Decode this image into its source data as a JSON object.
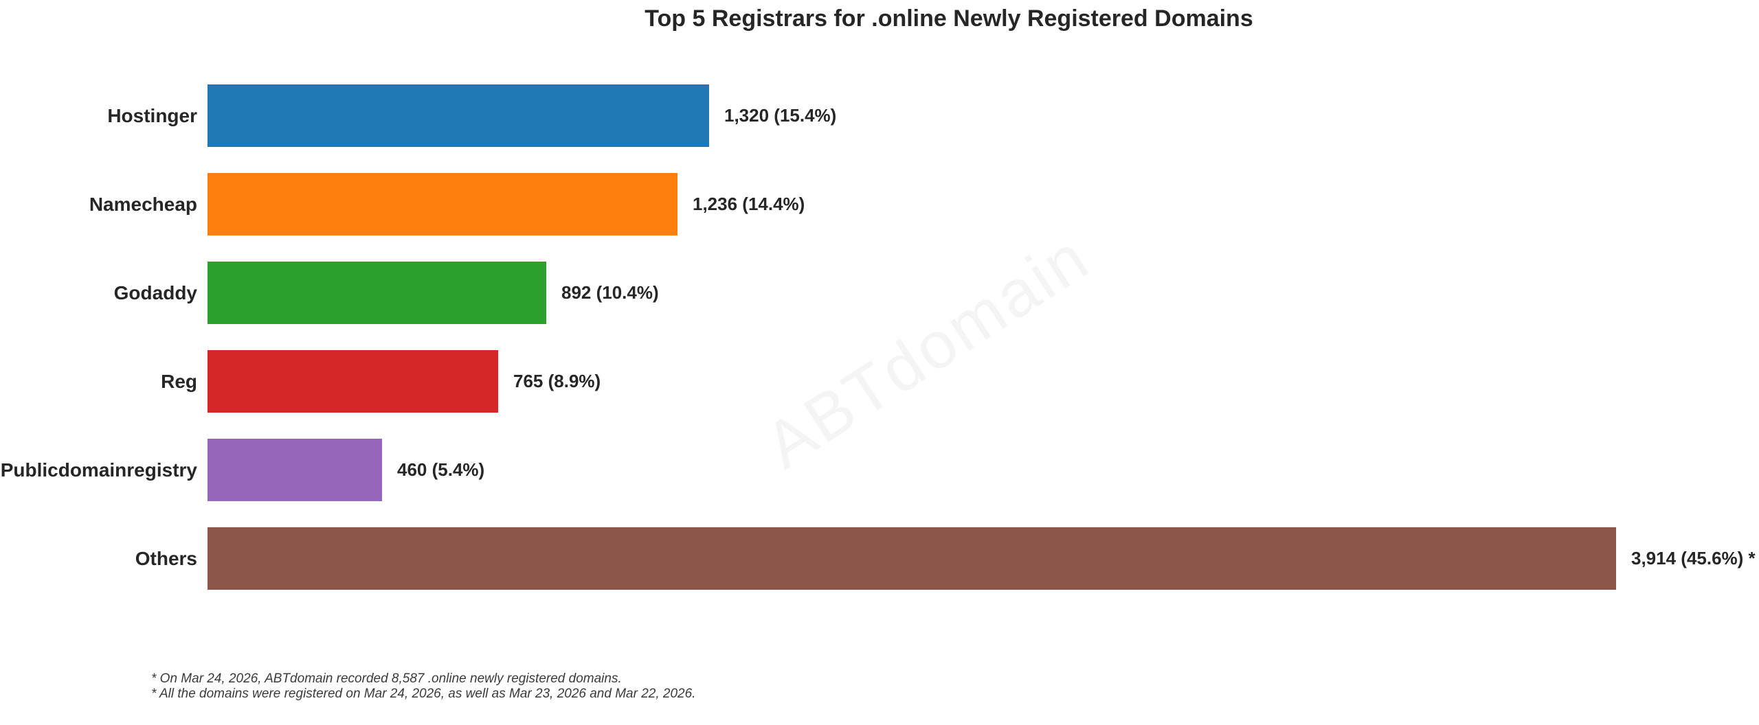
{
  "title": "Top 5 Registrars for .online Newly Registered Domains",
  "watermark": "ABTdomain",
  "footnotes": [
    "* On Mar 24, 2026, ABTdomain recorded 8,587 .online newly registered domains.",
    "* All the domains were registered on Mar 24, 2026, as well as Mar 23, 2026 and Mar 22, 2026."
  ],
  "chart_data": {
    "type": "bar",
    "orientation": "horizontal",
    "title": "Top 5 Registrars for .online Newly Registered Domains",
    "categories": [
      "Hostinger",
      "Namecheap",
      "Godaddy",
      "Reg",
      "Publicdomainregistry",
      "Others"
    ],
    "values": [
      1320,
      1236,
      892,
      765,
      460,
      3914
    ],
    "percentages": [
      15.4,
      14.4,
      10.4,
      8.9,
      5.4,
      45.6
    ],
    "value_labels": [
      "1,320 (15.4%)",
      "1,236 (14.4%)",
      "892 (10.4%)",
      "765 (8.9%)",
      "460 (5.4%)",
      "3,914 (45.6%) *"
    ],
    "colors": [
      "#1f77b4",
      "#ff7f0e",
      "#2ca02c",
      "#d62728",
      "#9467bd",
      "#8c564b"
    ],
    "total_recorded": "8,587",
    "xlabel": "",
    "ylabel": "",
    "xlim": [
      0,
      3707
    ],
    "grid": false,
    "legend": "none",
    "notes": "Others bar is clipped at the right edge of the plot area (value exceeds xlim)"
  }
}
